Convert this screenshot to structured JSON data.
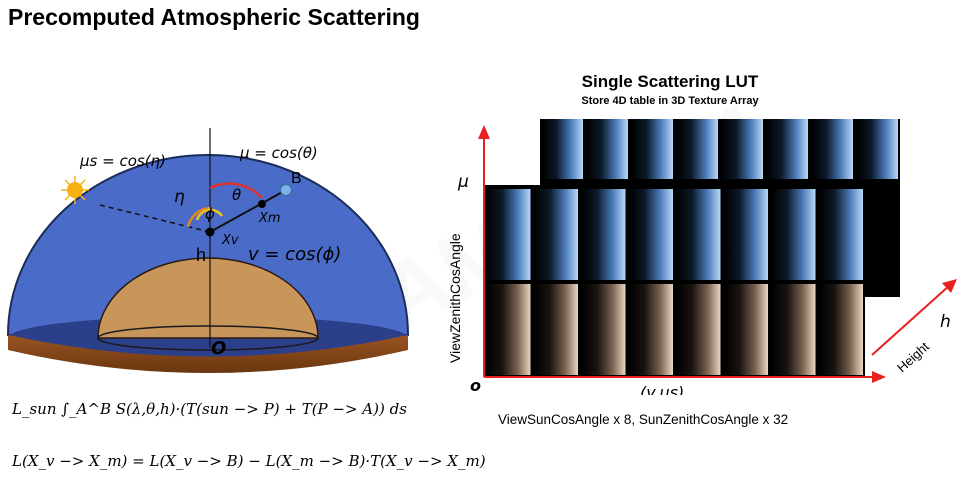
{
  "title": "Precomputed Atmospheric Scattering",
  "watermark": "GAMES104",
  "diagram": {
    "mu_s_label": "μs = cos(η)",
    "mu_label": "μ = cos(θ)",
    "v_label": "v = cos(ϕ)",
    "point_B": "B",
    "point_xm": "Xm",
    "point_xv": "Xv",
    "eta": "η",
    "theta": "θ",
    "phi": "ϕ",
    "h": "h",
    "origin": "O",
    "colors": {
      "sky": "#4868c0",
      "ground": "#8a4a1a",
      "earth": "#c8955a",
      "theta_arc": "#e03030",
      "eta_arc": "#e08a20",
      "phi_arc": "#f0c020",
      "point": "#6aa8e0"
    }
  },
  "lut": {
    "title": "Single Scattering LUT",
    "subtitle": "Store 4D table in 3D Texture Array",
    "y_axis_label": "ViewZenithCosAngle",
    "mu_symbol": "μ",
    "origin": "o",
    "x_axis_label": "(v,μs)",
    "height_label": "Height",
    "h_symbol": "h",
    "axis_color": "#e82020",
    "caption": "ViewSunCosAngle x 8, SunZenithCosAngle x 32"
  },
  "equations": {
    "eq1": "L_sun ∫_A^B S(λ,θ,h)·(T(sun −> P) + T(P −> A)) ds",
    "eq2": "L(X_v −> X_m) = L(X_v −> B) − L(X_m −> B)·T(X_v −> X_m)"
  }
}
